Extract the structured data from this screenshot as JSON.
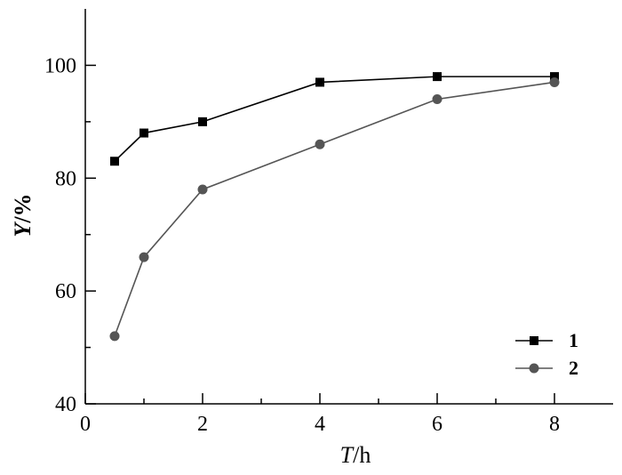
{
  "chart_data": {
    "type": "line",
    "x_axis": {
      "label_var": "T",
      "label_unit": "/h",
      "range": [
        0,
        9
      ],
      "ticks": [
        0,
        2,
        4,
        6,
        8
      ],
      "tick_labels": [
        "0",
        "2",
        "4",
        "6",
        "8"
      ]
    },
    "y_axis": {
      "label_var": "Y",
      "label_unit": "/%",
      "range": [
        40,
        110
      ],
      "ticks": [
        40,
        60,
        80,
        100
      ],
      "tick_labels": [
        "40",
        "60",
        "80",
        "100"
      ]
    },
    "grid": false,
    "legend_position": "bottom-right",
    "series": [
      {
        "name": "1",
        "marker": "square",
        "color": "#000000",
        "x": [
          0.5,
          1,
          2,
          4,
          6,
          8
        ],
        "y": [
          83,
          88,
          90,
          97,
          98,
          98
        ]
      },
      {
        "name": "2",
        "marker": "circle",
        "color": "#555555",
        "x": [
          0.5,
          1,
          2,
          4,
          6,
          8
        ],
        "y": [
          52,
          66,
          78,
          86,
          94,
          97
        ]
      }
    ]
  }
}
